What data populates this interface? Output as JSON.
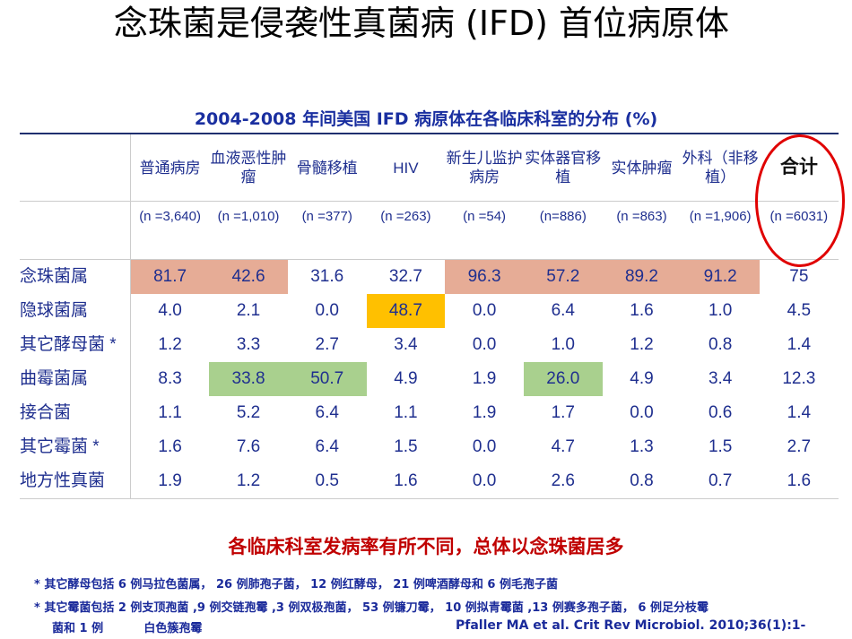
{
  "title": "念珠菌是侵袭性真菌病 (IFD) 首位病原体",
  "subtitle": "2004-2008 年间美国 IFD 病原体在各临床科室的分布 (%)",
  "colors": {
    "highlight_candida": "#E6AC96",
    "highlight_hiv": "#FFC000",
    "highlight_aspergillus": "#A9D08E",
    "circle": "#E00000"
  },
  "columns": [
    {
      "label": "普通病房",
      "n": "(n =3,640)"
    },
    {
      "label": "血液恶性肿瘤",
      "n": "(n =1,010)"
    },
    {
      "label": "骨髓移植",
      "n": "(n =377)"
    },
    {
      "label": "HIV",
      "n": "(n =263)"
    },
    {
      "label": "新生儿监护病房",
      "n": "(n =54)"
    },
    {
      "label": "实体器官移植",
      "n": "(n=886)"
    },
    {
      "label": "实体肿瘤",
      "n": "(n =863)"
    },
    {
      "label": "外科（非移植）",
      "n": "(n =1,906)"
    },
    {
      "label": "合计",
      "n": "(n =6031)"
    }
  ],
  "rows": [
    {
      "label": "念珠菌属",
      "values": [
        "81.7",
        "42.6",
        "31.6",
        "32.7",
        "96.3",
        "57.2",
        "89.2",
        "91.2",
        "75"
      ]
    },
    {
      "label": "隐球菌属",
      "values": [
        "4.0",
        "2.1",
        "0.0",
        "48.7",
        "0.0",
        "6.4",
        "1.6",
        "1.0",
        "4.5"
      ]
    },
    {
      "label": "其它酵母菌 *",
      "values": [
        "1.2",
        "3.3",
        "2.7",
        "3.4",
        "0.0",
        "1.0",
        "1.2",
        "0.8",
        "1.4"
      ]
    },
    {
      "label": "曲霉菌属",
      "values": [
        "8.3",
        "33.8",
        "50.7",
        "4.9",
        "1.9",
        "26.0",
        "4.9",
        "3.4",
        "12.3"
      ]
    },
    {
      "label": "接合菌",
      "values": [
        "1.1",
        "5.2",
        "6.4",
        "1.1",
        "1.9",
        "1.7",
        "0.0",
        "0.6",
        "1.4"
      ]
    },
    {
      "label": "其它霉菌 *",
      "values": [
        "1.6",
        "7.6",
        "6.4",
        "1.5",
        "0.0",
        "4.7",
        "1.3",
        "1.5",
        "2.7"
      ]
    },
    {
      "label": "地方性真菌",
      "values": [
        "1.9",
        "1.2",
        "0.5",
        "1.6",
        "0.0",
        "2.6",
        "0.8",
        "0.7",
        "1.6"
      ]
    }
  ],
  "conclusion": "各临床科室发病率有所不同，总体以念珠菌居多",
  "footnotes": [
    "*  其它酵母包括 6 例马拉色菌属， 26 例肺孢子菌， 12 例红酵母， 21 例啤酒酵母和 6 例毛孢子菌",
    "*  其它霉菌包括 2 例支顶孢菌 ,9 例交链孢霉 ,3 例双极孢菌， 53 例镰刀霉， 10 例拟青霉菌 ,13 例赛多孢子菌， 6 例足分枝霉",
    "菌和 1 例          白色簇孢霉"
  ],
  "citation": "Pfaller MA et al. Crit Rev Microbiol. 2010;36(1):1-"
}
